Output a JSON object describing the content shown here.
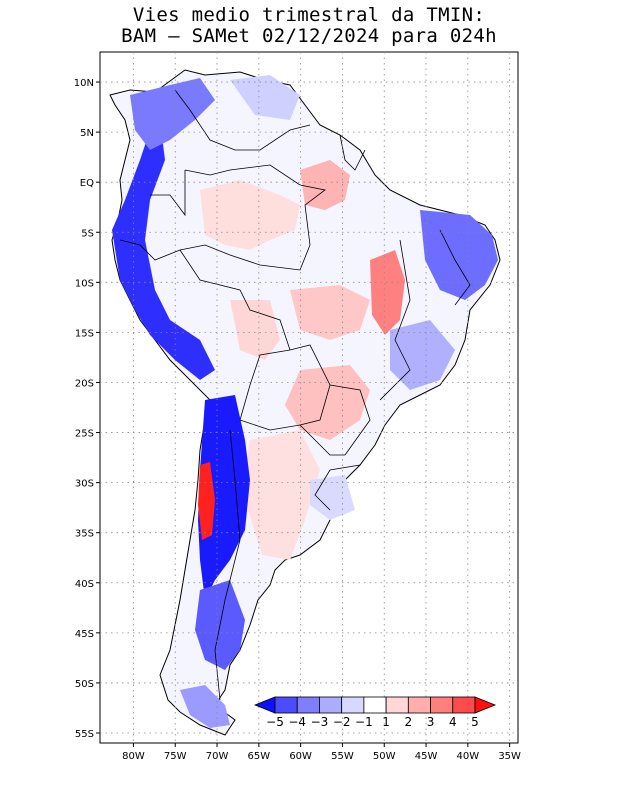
{
  "title": {
    "line1": "Vies medio trimestral da TMIN:",
    "line2": "BAM – SAMet 02/12/2024  para 024h"
  },
  "map": {
    "lon_range": [
      -84,
      -34
    ],
    "lat_range": [
      -56,
      13
    ],
    "grid": true,
    "lat_ticks": [
      "10N",
      "5N",
      "EQ",
      "5S",
      "10S",
      "15S",
      "20S",
      "25S",
      "30S",
      "35S",
      "40S",
      "45S",
      "50S",
      "55S"
    ],
    "lat_values": [
      10,
      5,
      0,
      -5,
      -10,
      -15,
      -20,
      -25,
      -30,
      -35,
      -40,
      -45,
      -50,
      -55
    ],
    "lon_ticks": [
      "80W",
      "75W",
      "70W",
      "65W",
      "60W",
      "55W",
      "50W",
      "45W",
      "40W",
      "35W"
    ],
    "lon_values": [
      -80,
      -75,
      -70,
      -65,
      -60,
      -55,
      -50,
      -45,
      -40,
      -35
    ]
  },
  "colorbar": {
    "labels": [
      "−5",
      "−4",
      "−3",
      "−2",
      "−1",
      "1",
      "2",
      "3",
      "4",
      "5"
    ],
    "colors": [
      "#1010ff",
      "#4b4bff",
      "#7e7eff",
      "#adadff",
      "#d7d7ff",
      "#ffffff",
      "#ffd7d7",
      "#ffadad",
      "#ff7e7e",
      "#ff4b4b",
      "#ff1010"
    ]
  }
}
